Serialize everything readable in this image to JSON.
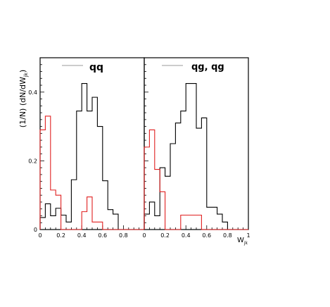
{
  "chart_data": [
    {
      "type": "step",
      "panel_label": "qq",
      "ylabel": "(1/N) (dN/dW",
      "ylabel_sub": "jk",
      "ylabel_close": ")",
      "xlabel": "",
      "xlim": [
        0,
        1
      ],
      "ylim": [
        0,
        0.5
      ],
      "y_ticks": [
        0,
        0.2,
        0.4
      ],
      "y_tick_labels": [
        "0",
        "0.2",
        "0.4"
      ],
      "x_ticks": [
        0,
        0.2,
        0.4,
        0.6,
        0.8
      ],
      "x_tick_labels": [
        "0",
        "0.2",
        "0.4",
        "0.6",
        "0.8"
      ],
      "legend_position": "top",
      "bin_edges": [
        0,
        0.05,
        0.1,
        0.15,
        0.2,
        0.25,
        0.3,
        0.35,
        0.4,
        0.45,
        0.5,
        0.55,
        0.6,
        0.65,
        0.7,
        0.75,
        0.8,
        0.85,
        0.9,
        0.95,
        1
      ],
      "series": [
        {
          "color": "#000000",
          "values": [
            0.035,
            0.075,
            0.04,
            0.062,
            0.042,
            0.022,
            0.145,
            0.345,
            0.425,
            0.345,
            0.385,
            0.3,
            0.142,
            0.058,
            0.045,
            0,
            0,
            0,
            0,
            0
          ]
        },
        {
          "color": "#e02020",
          "values": [
            0.29,
            0.33,
            0.115,
            0.1,
            0,
            0,
            0,
            0,
            0.052,
            0.095,
            0.022,
            0.022,
            0,
            0,
            0,
            0,
            0,
            0,
            0,
            0
          ]
        }
      ]
    },
    {
      "type": "step",
      "panel_label": "qg, qg",
      "xlabel": "W",
      "xlabel_sub": "jk",
      "xlim": [
        0,
        1
      ],
      "ylim": [
        0,
        0.5
      ],
      "x_ticks": [
        0,
        0.2,
        0.4,
        0.6,
        0.8,
        1
      ],
      "x_tick_labels": [
        "0",
        "0.2",
        "0.4",
        "0.6",
        "0.8",
        "1"
      ],
      "legend_position": "top",
      "bin_edges": [
        0,
        0.05,
        0.1,
        0.15,
        0.2,
        0.25,
        0.3,
        0.35,
        0.4,
        0.45,
        0.5,
        0.55,
        0.6,
        0.65,
        0.7,
        0.75,
        0.8,
        0.85,
        0.9,
        0.95,
        1
      ],
      "series": [
        {
          "color": "#000000",
          "values": [
            0.045,
            0.08,
            0.04,
            0.18,
            0.155,
            0.25,
            0.31,
            0.345,
            0.425,
            0.425,
            0.295,
            0.325,
            0.065,
            0.065,
            0.045,
            0.022,
            0,
            0,
            0,
            0
          ]
        },
        {
          "color": "#e02020",
          "values": [
            0.24,
            0.29,
            0.175,
            0.11,
            0,
            0,
            0,
            0.042,
            0.042,
            0.042,
            0.042,
            0,
            0,
            0,
            0,
            0,
            0,
            0,
            0,
            0
          ]
        }
      ]
    }
  ]
}
